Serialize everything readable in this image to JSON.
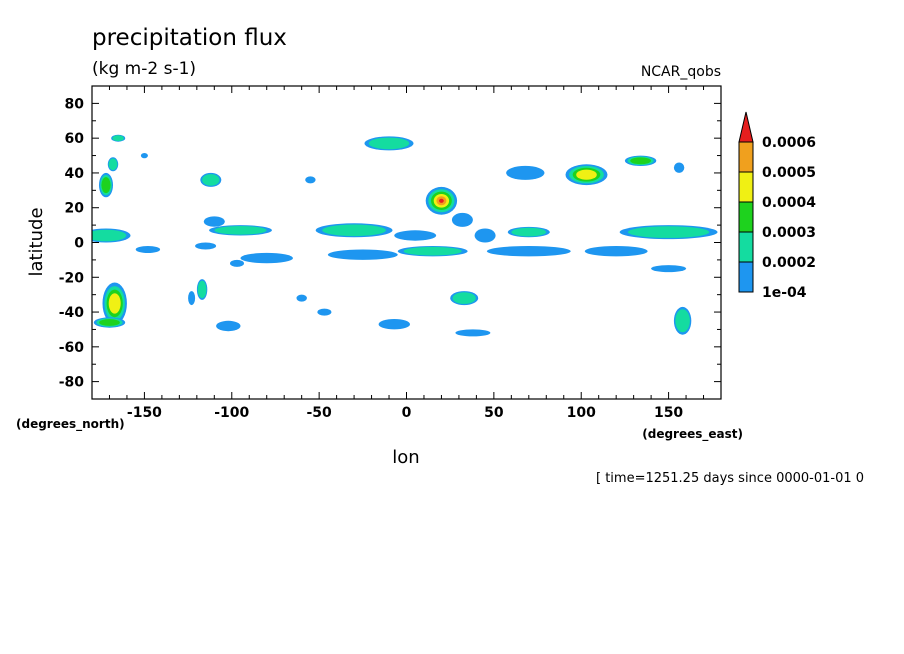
{
  "chart_data": {
    "type": "heatmap",
    "title": "precipitation flux",
    "units": "(kg m-2 s-1)",
    "dataset": "NCAR_qobs",
    "xlabel": "lon",
    "ylabel": "latitude",
    "x_units": "(degrees_east)",
    "y_units": "(degrees_north)",
    "xlim": [
      -180,
      180
    ],
    "ylim": [
      -90,
      90
    ],
    "x_ticks": [
      -150,
      -100,
      -50,
      0,
      50,
      100,
      150
    ],
    "y_ticks": [
      80,
      60,
      40,
      20,
      0,
      -20,
      -40,
      -60,
      -80
    ],
    "colorbar": {
      "levels": [
        "1e-04",
        "0.0002",
        "0.0003",
        "0.0004",
        "0.0005",
        "0.0006"
      ],
      "colors": [
        "#1e96f0",
        "#14dca0",
        "#1ed21e",
        "#f0f014",
        "#f0a01e",
        "#e61e1e"
      ],
      "extend": "max"
    },
    "features": [
      {
        "lon": -165,
        "lat": 60,
        "rx": 4,
        "ry": 2,
        "level": 2
      },
      {
        "lon": -168,
        "lat": 45,
        "rx": 3,
        "ry": 4,
        "level": 2
      },
      {
        "lon": -172,
        "lat": 33,
        "rx": 4,
        "ry": 7,
        "level": 3
      },
      {
        "lon": -150,
        "lat": 50,
        "rx": 2,
        "ry": 1.5,
        "level": 1
      },
      {
        "lon": -112,
        "lat": 36,
        "rx": 6,
        "ry": 4,
        "level": 2
      },
      {
        "lon": -55,
        "lat": 36,
        "rx": 3,
        "ry": 2,
        "level": 1
      },
      {
        "lon": -10,
        "lat": 57,
        "rx": 14,
        "ry": 4,
        "level": 2
      },
      {
        "lon": 20,
        "lat": 24,
        "rx": 9,
        "ry": 8,
        "level": 6
      },
      {
        "lon": 32,
        "lat": 13,
        "rx": 6,
        "ry": 4,
        "level": 1
      },
      {
        "lon": 68,
        "lat": 40,
        "rx": 11,
        "ry": 4,
        "level": 1
      },
      {
        "lon": 103,
        "lat": 39,
        "rx": 12,
        "ry": 6,
        "level": 4
      },
      {
        "lon": 134,
        "lat": 47,
        "rx": 9,
        "ry": 3,
        "level": 3
      },
      {
        "lon": 156,
        "lat": 43,
        "rx": 3,
        "ry": 3,
        "level": 1
      },
      {
        "lon": -172,
        "lat": 4,
        "rx": 14,
        "ry": 4,
        "level": 2
      },
      {
        "lon": -148,
        "lat": -4,
        "rx": 7,
        "ry": 2,
        "level": 1
      },
      {
        "lon": -110,
        "lat": 12,
        "rx": 6,
        "ry": 3,
        "level": 1
      },
      {
        "lon": -95,
        "lat": 7,
        "rx": 18,
        "ry": 3,
        "level": 2
      },
      {
        "lon": -115,
        "lat": -2,
        "rx": 6,
        "ry": 2,
        "level": 1
      },
      {
        "lon": -30,
        "lat": 7,
        "rx": 22,
        "ry": 4,
        "level": 2
      },
      {
        "lon": 5,
        "lat": 4,
        "rx": 12,
        "ry": 3,
        "level": 1
      },
      {
        "lon": 45,
        "lat": 4,
        "rx": 6,
        "ry": 4,
        "level": 1
      },
      {
        "lon": 70,
        "lat": 6,
        "rx": 12,
        "ry": 3,
        "level": 2
      },
      {
        "lon": 150,
        "lat": 6,
        "rx": 28,
        "ry": 4,
        "level": 2
      },
      {
        "lon": -80,
        "lat": -9,
        "rx": 15,
        "ry": 3,
        "level": 1
      },
      {
        "lon": -25,
        "lat": -7,
        "rx": 20,
        "ry": 3,
        "level": 1
      },
      {
        "lon": 15,
        "lat": -5,
        "rx": 20,
        "ry": 3,
        "level": 2
      },
      {
        "lon": 70,
        "lat": -5,
        "rx": 24,
        "ry": 3,
        "level": 1
      },
      {
        "lon": 120,
        "lat": -5,
        "rx": 18,
        "ry": 3,
        "level": 1
      },
      {
        "lon": 150,
        "lat": -15,
        "rx": 10,
        "ry": 2,
        "level": 1
      },
      {
        "lon": -97,
        "lat": -12,
        "rx": 4,
        "ry": 2,
        "level": 1
      },
      {
        "lon": -167,
        "lat": -35,
        "rx": 7,
        "ry": 12,
        "level": 4
      },
      {
        "lon": -170,
        "lat": -46,
        "rx": 9,
        "ry": 3,
        "level": 3
      },
      {
        "lon": -117,
        "lat": -27,
        "rx": 3,
        "ry": 6,
        "level": 2
      },
      {
        "lon": -123,
        "lat": -32,
        "rx": 2,
        "ry": 4,
        "level": 1
      },
      {
        "lon": -102,
        "lat": -48,
        "rx": 7,
        "ry": 3,
        "level": 1
      },
      {
        "lon": -60,
        "lat": -32,
        "rx": 3,
        "ry": 2,
        "level": 1
      },
      {
        "lon": -47,
        "lat": -40,
        "rx": 4,
        "ry": 2,
        "level": 1
      },
      {
        "lon": -7,
        "lat": -47,
        "rx": 9,
        "ry": 3,
        "level": 1
      },
      {
        "lon": 33,
        "lat": -32,
        "rx": 8,
        "ry": 4,
        "level": 2
      },
      {
        "lon": 38,
        "lat": -52,
        "rx": 10,
        "ry": 2,
        "level": 1
      },
      {
        "lon": 158,
        "lat": -45,
        "rx": 5,
        "ry": 8,
        "level": 2
      }
    ]
  },
  "footer": "[ time=1251.25 days since 0000-01-01 0"
}
